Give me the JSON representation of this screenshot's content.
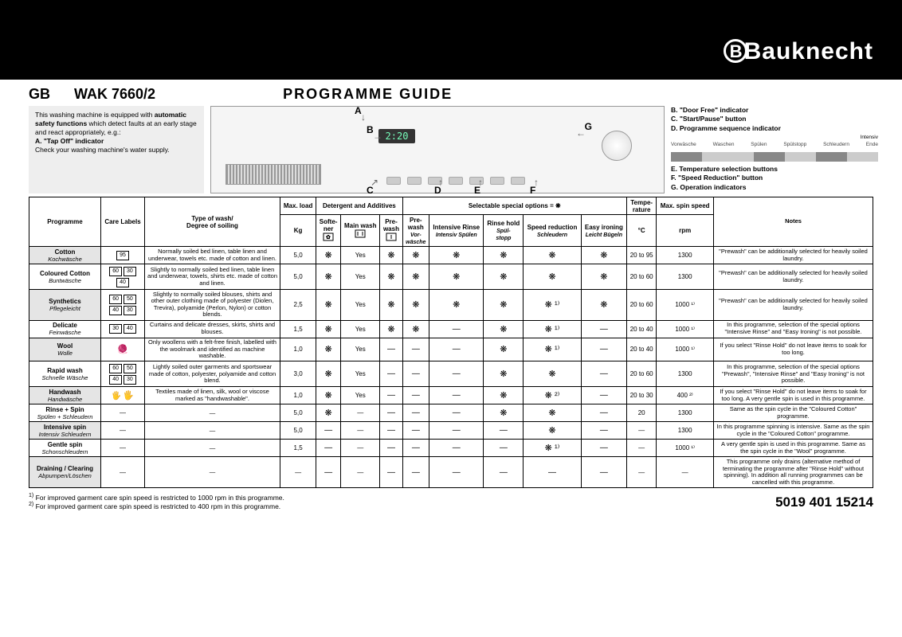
{
  "brand": "Bauknecht",
  "country_code": "GB",
  "model": "WAK 7660/2",
  "title": "PROGRAMME GUIDE",
  "left_box": {
    "line1": "This washing machine is equipped with",
    "line2_bold": "automatic safety functions",
    "line2_rest": " which detect faults at an early stage and react appropriately, e.g.:",
    "item_a_bold": "A. \"Tap Off\" indicator",
    "item_a_text": "Check your washing machine's water supply."
  },
  "panel_labels": [
    "A",
    "B",
    "C",
    "D",
    "E",
    "F",
    "G"
  ],
  "panel_display": "2:20",
  "right_legend": {
    "b": "B. \"Door Free\" indicator",
    "c": "C. \"Start/Pause\" button",
    "d": "D. Programme sequence indicator",
    "seq_labels": [
      "Vorwäsche",
      "Waschen",
      "Spülen",
      "Spülstopp",
      "Schleudern",
      "Ende"
    ],
    "intensiv": "Intensiv",
    "e": "E. Temperature selection buttons",
    "f": "F. \"Speed Reduction\" button",
    "g": "G. Operation indicators"
  },
  "table": {
    "head": {
      "programme": "Programme",
      "care": "Care Labels",
      "type": "Type of wash/\nDegree of soiling",
      "maxload": "Max. load",
      "maxload_unit": "Kg",
      "detergent_group": "Detergent and Additives",
      "softener": "Softe-\nner",
      "mainwash": "Main wash",
      "prewash": "Pre-\nwash",
      "options_group": "Selectable special options = ❋",
      "opt_prewash": "Pre-\nwash",
      "opt_prewash_it": "Vor-\nwäsche",
      "opt_intrinse": "Intensive Rinse",
      "opt_intrinse_it": "Intensiv Spülen",
      "opt_rinsehold": "Rinse hold",
      "opt_rinsehold_it": "Spül-\nstopp",
      "opt_speed": "Speed reduction",
      "opt_speed_it": "Schleudern",
      "opt_easy": "Easy ironing",
      "opt_easy_it": "Leicht Bügeln",
      "temp": "Tempe-\nrature",
      "temp_unit": "°C",
      "spin": "Max. spin speed",
      "spin_unit": "rpm",
      "notes": "Notes"
    },
    "rows": [
      {
        "en": "Cotton",
        "de": "Kochwäsche",
        "care": [
          "95"
        ],
        "desc": "Normally soiled bed linen, table linen and underwear, towels etc. made of cotton and linen.",
        "load": "5,0",
        "soft": "❋",
        "main": "Yes",
        "pre": "❋",
        "o_pre": "❋",
        "o_int": "❋",
        "o_rh": "❋",
        "o_sp": "❋",
        "o_ei": "❋",
        "temp": "20 to 95",
        "spin": "1300",
        "notes": "\"Prewash\" can be additionally selected for heavily soiled laundry.",
        "shaded": true
      },
      {
        "en": "Coloured Cotton",
        "de": "Buntwäsche",
        "care": [
          "60",
          "30",
          "40"
        ],
        "desc": "Slightly to normally soiled bed linen, table linen and underwear, towels, shirts etc. made of cotton and linen.",
        "load": "5,0",
        "soft": "❋",
        "main": "Yes",
        "pre": "❋",
        "o_pre": "❋",
        "o_int": "❋",
        "o_rh": "❋",
        "o_sp": "❋",
        "o_ei": "❋",
        "temp": "20 to 60",
        "spin": "1300",
        "notes": "\"Prewash\" can be additionally selected for heavily soiled laundry."
      },
      {
        "en": "Synthetics",
        "de": "Pflegeleicht",
        "care": [
          "60",
          "50",
          "40",
          "30"
        ],
        "desc": "Slightly to normally soiled blouses, shirts and other outer clothing made of polyester (Diolen, Trevira), polyamide (Perlon, Nylon) or cotton blends.",
        "load": "2,5",
        "soft": "❋",
        "main": "Yes",
        "pre": "❋",
        "o_pre": "❋",
        "o_int": "❋",
        "o_rh": "❋",
        "o_sp": "❋ ¹⁾",
        "o_ei": "❋",
        "temp": "20 to 60",
        "spin": "1000 ¹⁾",
        "notes": "\"Prewash\" can be additionally selected for heavily soiled laundry.",
        "shaded": true
      },
      {
        "en": "Delicate",
        "de": "Feinwäsche",
        "care": [
          "30",
          "40"
        ],
        "desc": "Curtains and delicate dresses, skirts, shirts and blouses.",
        "load": "1,5",
        "soft": "❋",
        "main": "Yes",
        "pre": "❋",
        "o_pre": "❋",
        "o_int": "—",
        "o_rh": "❋",
        "o_sp": "❋ ¹⁾",
        "o_ei": "—",
        "temp": "20 to 40",
        "spin": "1000 ¹⁾",
        "notes": "In this programme, selection of the special options \"Intensive Rinse\" and \"Easy Ironing\" is not possible."
      },
      {
        "en": "Wool",
        "de": "Wolle",
        "care": [
          "wool"
        ],
        "desc": "Only woollens with a felt-free finish, labelled with the woolmark and identified as machine washable.",
        "load": "1,0",
        "soft": "❋",
        "main": "Yes",
        "pre": "—",
        "o_pre": "—",
        "o_int": "—",
        "o_rh": "❋",
        "o_sp": "❋ ¹⁾",
        "o_ei": "—",
        "temp": "20 to 40",
        "spin": "1000 ¹⁾",
        "notes": "If you select \"Rinse Hold\" do not leave items to soak for too long.",
        "shaded": true
      },
      {
        "en": "Rapid wash",
        "de": "Schnelle Wäsche",
        "care": [
          "60",
          "50",
          "40",
          "30"
        ],
        "desc": "Lightly soiled outer garments and sportswear made of cotton, polyester, polyamide and cotton blend.",
        "load": "3,0",
        "soft": "❋",
        "main": "Yes",
        "pre": "—",
        "o_pre": "—",
        "o_int": "—",
        "o_rh": "❋",
        "o_sp": "❋",
        "o_ei": "—",
        "temp": "20 to 60",
        "spin": "1300",
        "notes": "In this programme, selection of the special options \"Prewash\", \"Intensive Rinse\" and \"Easy Ironing\" is not possible."
      },
      {
        "en": "Handwash",
        "de": "Handwäsche",
        "care": [
          "hand"
        ],
        "desc": "Textiles made of linen, silk, wool or viscose marked as \"handwashable\".",
        "load": "1,0",
        "soft": "❋",
        "main": "Yes",
        "pre": "—",
        "o_pre": "—",
        "o_int": "—",
        "o_rh": "❋",
        "o_sp": "❋ ²⁾",
        "o_ei": "—",
        "temp": "20 to 30",
        "spin": "400 ²⁾",
        "notes": "If you select \"Rinse Hold\" do not leave items to soak for too long. A very gentle spin is used in this programme.",
        "shaded": true,
        "hand_icon": true
      },
      {
        "en": "Rinse + Spin",
        "de": "Spülen + Schleudern",
        "care": [
          "—"
        ],
        "desc": "—",
        "load": "5,0",
        "soft": "❋",
        "main": "—",
        "pre": "—",
        "o_pre": "—",
        "o_int": "—",
        "o_rh": "❋",
        "o_sp": "❋",
        "o_ei": "—",
        "temp": "20",
        "spin": "1300",
        "notes": "Same as the spin cycle in the \"Coloured Cotton\" programme."
      },
      {
        "en": "Intensive spin",
        "de": "Intensiv Schleudern",
        "care": [
          "—"
        ],
        "desc": "—",
        "load": "5,0",
        "soft": "—",
        "main": "—",
        "pre": "—",
        "o_pre": "—",
        "o_int": "—",
        "o_rh": "—",
        "o_sp": "❋",
        "o_ei": "—",
        "temp": "—",
        "spin": "1300",
        "notes": "In this programme spinning is intensive. Same as the spin cycle in the \"Coloured Cotton\" programme.",
        "shaded": true
      },
      {
        "en": "Gentle spin",
        "de": "Schonschleudern",
        "care": [
          "—"
        ],
        "desc": "—",
        "load": "1,5",
        "soft": "—",
        "main": "—",
        "pre": "—",
        "o_pre": "—",
        "o_int": "—",
        "o_rh": "—",
        "o_sp": "❋ ¹⁾",
        "o_ei": "—",
        "temp": "—",
        "spin": "1000 ¹⁾",
        "notes": "A very gentle spin is used in this programme. Same as the spin cycle in the \"Wool\" programme."
      },
      {
        "en": "Draining / Clearing",
        "de": "Abpumpen/Löschen",
        "care": [
          "—"
        ],
        "desc": "—",
        "load": "—",
        "soft": "—",
        "main": "—",
        "pre": "—",
        "o_pre": "—",
        "o_int": "—",
        "o_rh": "—",
        "o_sp": "—",
        "o_ei": "—",
        "temp": "—",
        "spin": "—",
        "notes": "This programme only drains (alternative method of terminating the programme after \"Rinse Hold\" without spinning). In addition all running programmes can be cancelled with this programme.",
        "shaded": true
      }
    ]
  },
  "footnotes": {
    "f1": "For improved garment care spin speed is restricted to 1000 rpm in this programme.",
    "f2": "For improved garment care spin speed is restricted to 400 rpm in this programme."
  },
  "part_number": "5019 401 15214"
}
